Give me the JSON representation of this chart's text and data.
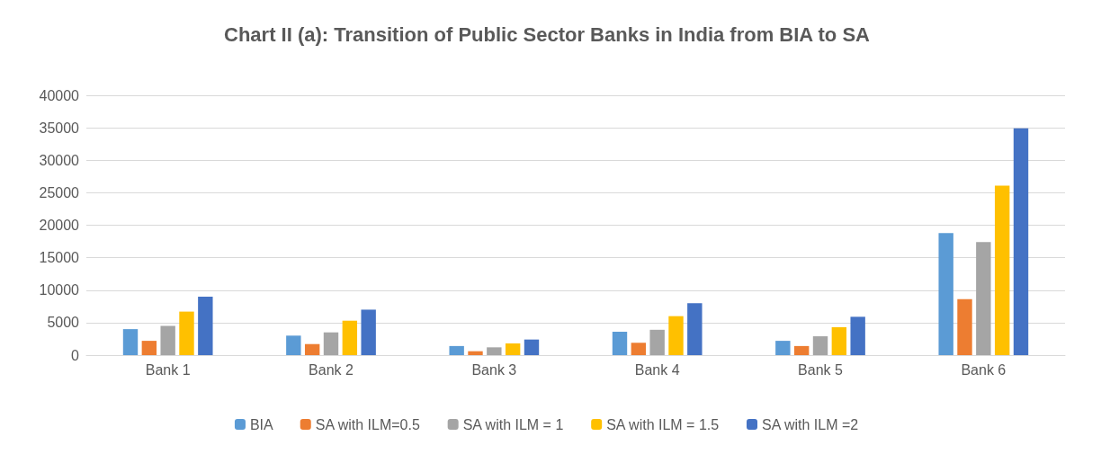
{
  "chart_data": {
    "type": "bar",
    "title": "Chart II (a): Transition of Public Sector Banks in India from BIA to SA",
    "categories": [
      "Bank 1",
      "Bank 2",
      "Bank 3",
      "Bank 4",
      "Bank 5",
      "Bank 6"
    ],
    "series": [
      {
        "name": "BIA",
        "color": "#5b9bd5",
        "values": [
          4000,
          3000,
          1400,
          3600,
          2200,
          18800
        ]
      },
      {
        "name": "SA with ILM=0.5",
        "color": "#ed7d31",
        "values": [
          2200,
          1700,
          600,
          1900,
          1400,
          8600
        ]
      },
      {
        "name": "SA with ILM = 1",
        "color": "#a5a5a5",
        "values": [
          4500,
          3500,
          1200,
          3900,
          2900,
          17400
        ]
      },
      {
        "name": "SA with ILM = 1.5",
        "color": "#ffc000",
        "values": [
          6700,
          5300,
          1800,
          6000,
          4300,
          26100
        ]
      },
      {
        "name": "SA with ILM =2",
        "color": "#4472c4",
        "values": [
          9000,
          7000,
          2400,
          8000,
          5900,
          34900
        ]
      }
    ],
    "ylim": [
      0,
      40000
    ],
    "yticks": [
      0,
      5000,
      10000,
      15000,
      20000,
      25000,
      30000,
      35000,
      40000
    ],
    "grid": "y",
    "legend": "bottom"
  }
}
